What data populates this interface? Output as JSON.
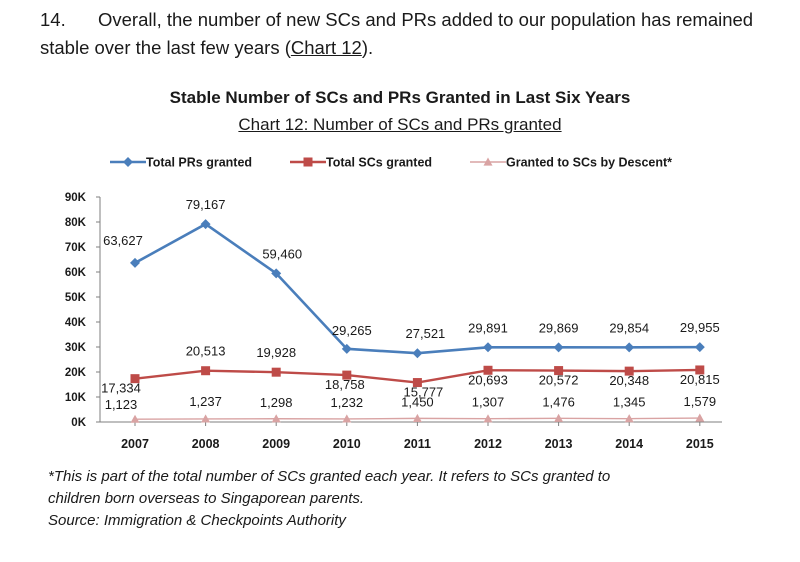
{
  "paragraph": {
    "number": "14.",
    "text_before": "Overall, the number of new SCs and PRs added to our population has remained stable over the last few years (",
    "chart_ref": "Chart 12",
    "text_after": ")."
  },
  "footnote": {
    "line1": "*This is part of the total number of SCs granted each year. It refers to SCs granted to",
    "line2": "children born overseas to Singaporean parents.",
    "source": "Source: Immigration & Checkpoints Authority"
  },
  "chart_data": {
    "type": "line",
    "title": "Stable Number of SCs and PRs Granted in Last Six Years",
    "subtitle": "Chart 12: Number of SCs and PRs granted",
    "categories": [
      "2007",
      "2008",
      "2009",
      "2010",
      "2011",
      "2012",
      "2013",
      "2014",
      "2015"
    ],
    "y_ticks": [
      "0K",
      "10K",
      "20K",
      "30K",
      "40K",
      "50K",
      "60K",
      "70K",
      "80K",
      "90K"
    ],
    "ylim": [
      0,
      90000
    ],
    "legend_position": "top",
    "grid": false,
    "series": [
      {
        "name": "Total PRs granted",
        "color": "#4a7ebb",
        "marker": "diamond",
        "values": [
          63627,
          79167,
          59460,
          29265,
          27521,
          29891,
          29869,
          29854,
          29955
        ],
        "labels": [
          "63,627",
          "79,167",
          "59,460",
          "29,265",
          "27,521",
          "29,891",
          "29,869",
          "29,854",
          "29,955"
        ]
      },
      {
        "name": "Total SCs granted",
        "color": "#be4b48",
        "marker": "square",
        "values": [
          17334,
          20513,
          19928,
          18758,
          15777,
          20693,
          20572,
          20348,
          20815
        ],
        "labels": [
          "17,334",
          "20,513",
          "19,928",
          "18,758",
          "15,777",
          "20,693",
          "20,572",
          "20,348",
          "20,815"
        ]
      },
      {
        "name": "Granted to SCs by Descent*",
        "color": "#d9a3a3",
        "marker": "triangle",
        "values": [
          1123,
          1237,
          1298,
          1232,
          1450,
          1307,
          1476,
          1345,
          1579
        ],
        "labels": [
          "1,123",
          "1,237",
          "1,298",
          "1,232",
          "1,450",
          "1,307",
          "1,476",
          "1,345",
          "1,579"
        ]
      }
    ]
  }
}
